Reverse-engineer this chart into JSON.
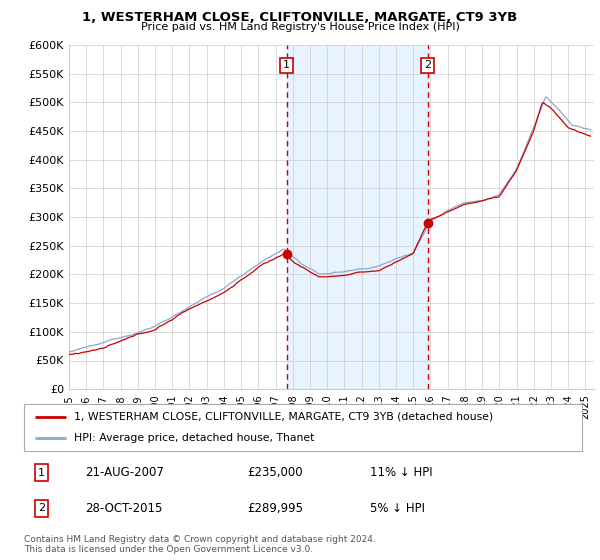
{
  "title": "1, WESTERHAM CLOSE, CLIFTONVILLE, MARGATE, CT9 3YB",
  "subtitle": "Price paid vs. HM Land Registry's House Price Index (HPI)",
  "ylabel_ticks": [
    "£0",
    "£50K",
    "£100K",
    "£150K",
    "£200K",
    "£250K",
    "£300K",
    "£350K",
    "£400K",
    "£450K",
    "£500K",
    "£550K",
    "£600K"
  ],
  "ytick_values": [
    0,
    50000,
    100000,
    150000,
    200000,
    250000,
    300000,
    350000,
    400000,
    450000,
    500000,
    550000,
    600000
  ],
  "ylim": [
    0,
    600000
  ],
  "sale1_date": 2007.64,
  "sale1_price": 235000,
  "sale1_label": "1",
  "sale2_date": 2015.83,
  "sale2_price": 289995,
  "sale2_label": "2",
  "legend_property": "1, WESTERHAM CLOSE, CLIFTONVILLE, MARGATE, CT9 3YB (detached house)",
  "legend_hpi": "HPI: Average price, detached house, Thanet",
  "note1_label": "1",
  "note1_date": "21-AUG-2007",
  "note1_price": "£235,000",
  "note1_info": "11% ↓ HPI",
  "note2_label": "2",
  "note2_date": "28-OCT-2015",
  "note2_price": "£289,995",
  "note2_info": "5% ↓ HPI",
  "footer": "Contains HM Land Registry data © Crown copyright and database right 2024.\nThis data is licensed under the Open Government Licence v3.0.",
  "property_color": "#cc0000",
  "hpi_color": "#88aacc",
  "sale_marker_color": "#cc0000",
  "vline_color": "#cc0000",
  "shaded_color": "#ddeeff",
  "background_color": "#ffffff",
  "grid_color": "#cccccc"
}
